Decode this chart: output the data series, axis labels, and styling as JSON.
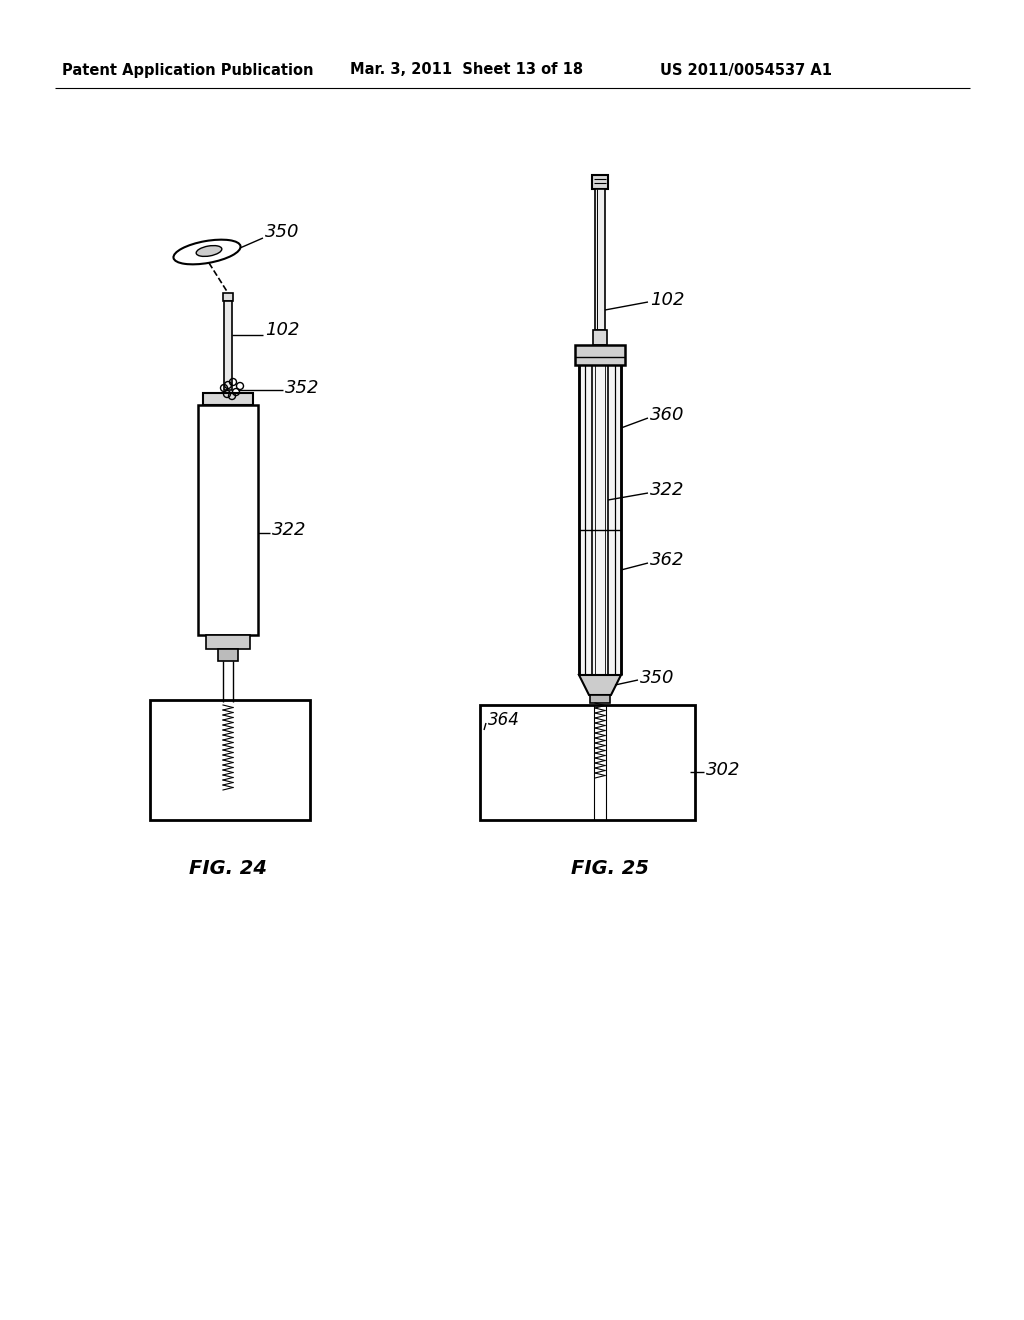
{
  "bg_color": "#ffffff",
  "line_color": "#000000",
  "header_left": "Patent Application Publication",
  "header_mid": "Mar. 3, 2011  Sheet 13 of 18",
  "header_right": "US 2011/0054537 A1",
  "fig24_label": "FIG. 24",
  "fig25_label": "FIG. 25",
  "labels": {
    "350_left": "350",
    "102_left": "102",
    "352_left": "352",
    "322_left": "322",
    "102_right": "102",
    "360_right": "360",
    "322_right": "322",
    "362_right": "362",
    "350_right": "350",
    "364_right": "364",
    "302_right": "302"
  }
}
